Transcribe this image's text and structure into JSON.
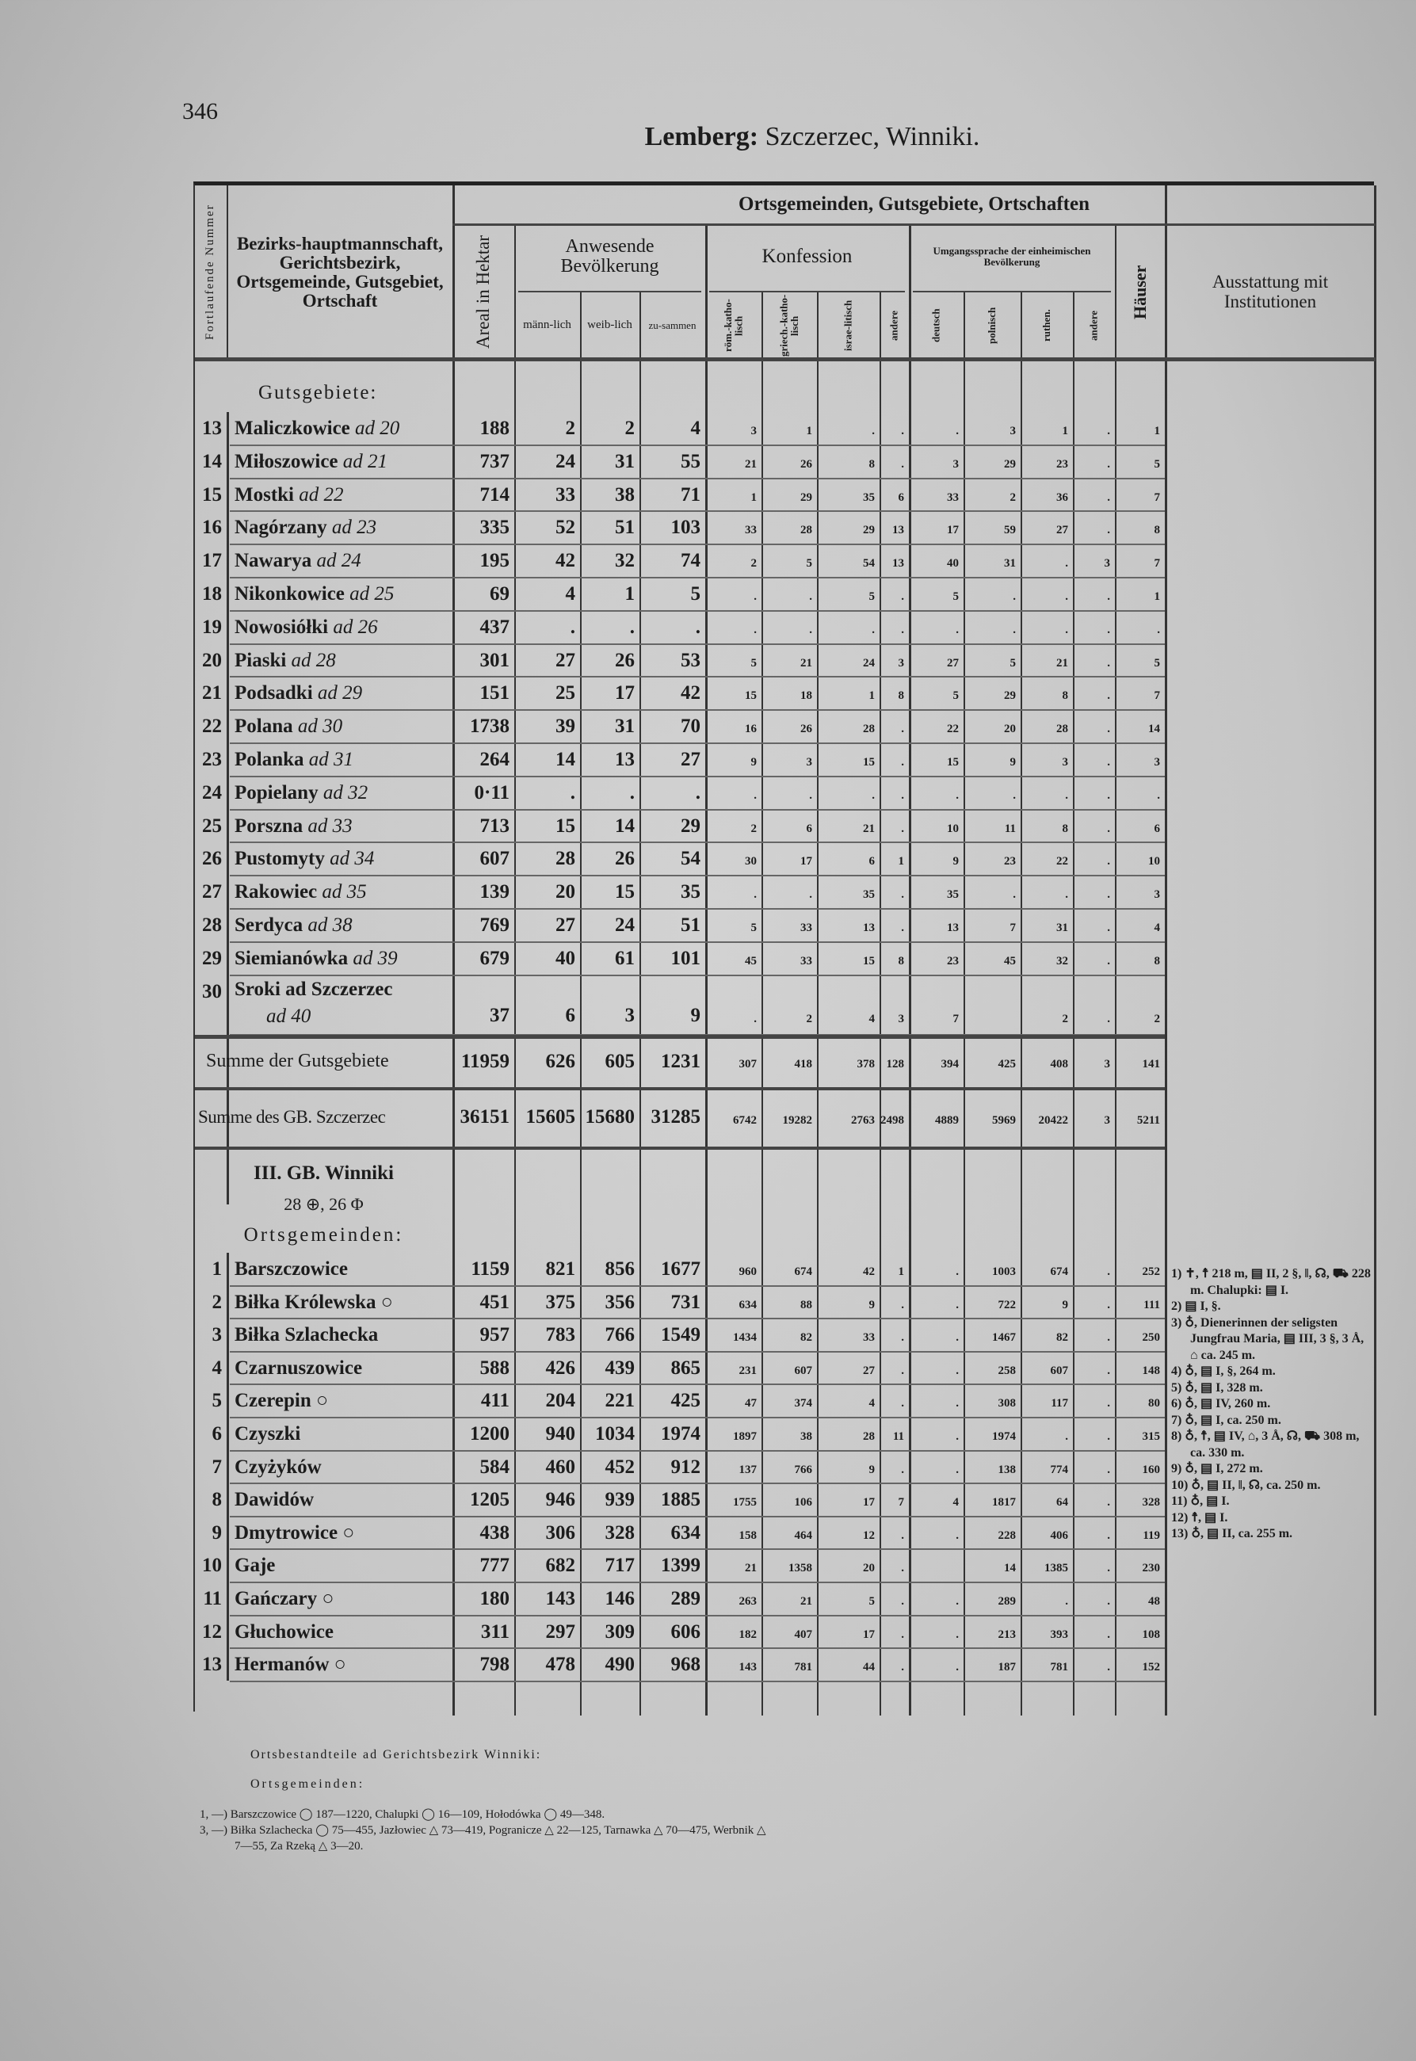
{
  "page_number": "346",
  "title": {
    "bold": "Lemberg:",
    "rest": " Szczerzec, Winniki."
  },
  "header": {
    "nr": "Fortlaufende Nummer",
    "name": "Bezirks-hauptmannschaft, Gerichtsbezirk, Ortsgemeinde, Gutsgebiet, Ortschaft",
    "group": "Ortsgemeinden, Gutsgebiete, Ortschaften",
    "areal": "Areal in Hektar",
    "bev": "Anwesende Bevölkerung",
    "bev_cols": [
      "männ-lich",
      "weib-lich",
      "zu-sammen"
    ],
    "konf": "Konfession",
    "konf_cols": [
      "röm.-katho-lisch",
      "griech.-katho-lisch",
      "israe-litisch",
      "andere"
    ],
    "spr": "Umgangssprache der einheimischen Bevölkerung",
    "spr_cols": [
      "deutsch",
      "polnisch",
      "ruthen.",
      "andere"
    ],
    "haeuser": "Häuser",
    "ausst": "Ausstattung mit Institutionen"
  },
  "gutsgebiete": {
    "label": "Gutsgebiete:",
    "rows": [
      {
        "nr": "13",
        "name": "Maliczkowice",
        "ad": "ad 20",
        "v": [
          "188",
          "2",
          "2",
          "4",
          "3",
          "1",
          ".",
          ".",
          ".",
          "3",
          "1",
          ".",
          "1"
        ]
      },
      {
        "nr": "14",
        "name": "Miłoszowice",
        "ad": "ad 21",
        "v": [
          "737",
          "24",
          "31",
          "55",
          "21",
          "26",
          "8",
          ".",
          "3",
          "29",
          "23",
          ".",
          "5"
        ]
      },
      {
        "nr": "15",
        "name": "Mostki",
        "ad": "ad 22",
        "v": [
          "714",
          "33",
          "38",
          "71",
          "1",
          "29",
          "35",
          "6",
          "33",
          "2",
          "36",
          ".",
          "7"
        ]
      },
      {
        "nr": "16",
        "name": "Nagórzany",
        "ad": "ad 23",
        "v": [
          "335",
          "52",
          "51",
          "103",
          "33",
          "28",
          "29",
          "13",
          "17",
          "59",
          "27",
          ".",
          "8"
        ]
      },
      {
        "nr": "17",
        "name": "Nawarya",
        "ad": "ad 24",
        "v": [
          "195",
          "42",
          "32",
          "74",
          "2",
          "5",
          "54",
          "13",
          "40",
          "31",
          ".",
          "3",
          "7"
        ]
      },
      {
        "nr": "18",
        "name": "Nikonkowice",
        "ad": "ad 25",
        "v": [
          "69",
          "4",
          "1",
          "5",
          ".",
          ".",
          "5",
          ".",
          "5",
          ".",
          ".",
          ".",
          "1"
        ]
      },
      {
        "nr": "19",
        "name": "Nowosiółki",
        "ad": "ad 26",
        "v": [
          "437",
          ".",
          ".",
          ".",
          ".",
          ".",
          ".",
          ".",
          ".",
          ".",
          ".",
          ".",
          "."
        ]
      },
      {
        "nr": "20",
        "name": "Piaski",
        "ad": "ad 28",
        "v": [
          "301",
          "27",
          "26",
          "53",
          "5",
          "21",
          "24",
          "3",
          "27",
          "5",
          "21",
          ".",
          "5"
        ]
      },
      {
        "nr": "21",
        "name": "Podsadki",
        "ad": "ad 29",
        "v": [
          "151",
          "25",
          "17",
          "42",
          "15",
          "18",
          "1",
          "8",
          "5",
          "29",
          "8",
          ".",
          "7"
        ]
      },
      {
        "nr": "22",
        "name": "Polana",
        "ad": "ad 30",
        "v": [
          "1738",
          "39",
          "31",
          "70",
          "16",
          "26",
          "28",
          ".",
          "22",
          "20",
          "28",
          ".",
          "14"
        ]
      },
      {
        "nr": "23",
        "name": "Polanka",
        "ad": "ad 31",
        "v": [
          "264",
          "14",
          "13",
          "27",
          "9",
          "3",
          "15",
          ".",
          "15",
          "9",
          "3",
          ".",
          "3"
        ]
      },
      {
        "nr": "24",
        "name": "Popielany",
        "ad": "ad 32",
        "v": [
          "0·11",
          ".",
          ".",
          ".",
          ".",
          ".",
          ".",
          ".",
          ".",
          ".",
          ".",
          ".",
          "."
        ]
      },
      {
        "nr": "25",
        "name": "Porszna",
        "ad": "ad 33",
        "v": [
          "713",
          "15",
          "14",
          "29",
          "2",
          "6",
          "21",
          ".",
          "10",
          "11",
          "8",
          ".",
          "6"
        ]
      },
      {
        "nr": "26",
        "name": "Pustomyty",
        "ad": "ad 34",
        "v": [
          "607",
          "28",
          "26",
          "54",
          "30",
          "17",
          "6",
          "1",
          "9",
          "23",
          "22",
          ".",
          "10"
        ]
      },
      {
        "nr": "27",
        "name": "Rakowiec",
        "ad": "ad 35",
        "v": [
          "139",
          "20",
          "15",
          "35",
          ".",
          ".",
          "35",
          ".",
          "35",
          ".",
          ".",
          ".",
          "3"
        ]
      },
      {
        "nr": "28",
        "name": "Serdyca",
        "ad": "ad 38",
        "v": [
          "769",
          "27",
          "24",
          "51",
          "5",
          "33",
          "13",
          ".",
          "13",
          "7",
          "31",
          ".",
          "4"
        ]
      },
      {
        "nr": "29",
        "name": "Siemianówka",
        "ad": "ad 39",
        "v": [
          "679",
          "40",
          "61",
          "101",
          "45",
          "33",
          "15",
          "8",
          "23",
          "45",
          "32",
          ".",
          "8"
        ]
      },
      {
        "nr": "30",
        "name": "Sroki ad Szczerzec",
        "ad": "ad 40",
        "v": [
          "37",
          "6",
          "3",
          "9",
          ".",
          "2",
          "4",
          "3",
          "7",
          "",
          "2",
          ".",
          "2"
        ]
      }
    ],
    "sum_label": "Summe der Gutsgebiete",
    "sum": [
      "11959",
      "626",
      "605",
      "1231",
      "307",
      "418",
      "378",
      "128",
      "394",
      "425",
      "408",
      "3",
      "141"
    ]
  },
  "gb_sum": {
    "label": "Summe des GB. Szczerzec",
    "v": [
      "36151",
      "15605",
      "15680",
      "31285",
      "6742",
      "19282",
      "2763",
      "2498",
      "4889",
      "5969",
      "20422",
      "3",
      "5211"
    ]
  },
  "winniki": {
    "heading": "III. GB. Winniki",
    "sub": "28 ⊕, 26 Φ",
    "label": "Ortsgemeinden:",
    "rows": [
      {
        "nr": "1",
        "name": "Barszczowice",
        "v": [
          "1159",
          "821",
          "856",
          "1677",
          "960",
          "674",
          "42",
          "1",
          ".",
          "1003",
          "674",
          ".",
          "252"
        ]
      },
      {
        "nr": "2",
        "name": "Biłka Królewska ○",
        "v": [
          "451",
          "375",
          "356",
          "731",
          "634",
          "88",
          "9",
          ".",
          ".",
          "722",
          "9",
          ".",
          "111"
        ]
      },
      {
        "nr": "3",
        "name": "Biłka Szlachecka",
        "v": [
          "957",
          "783",
          "766",
          "1549",
          "1434",
          "82",
          "33",
          ".",
          ".",
          "1467",
          "82",
          ".",
          "250"
        ]
      },
      {
        "nr": "4",
        "name": "Czarnuszowice",
        "v": [
          "588",
          "426",
          "439",
          "865",
          "231",
          "607",
          "27",
          ".",
          ".",
          "258",
          "607",
          ".",
          "148"
        ]
      },
      {
        "nr": "5",
        "name": "Czerepin ○",
        "v": [
          "411",
          "204",
          "221",
          "425",
          "47",
          "374",
          "4",
          ".",
          ".",
          "308",
          "117",
          ".",
          "80"
        ]
      },
      {
        "nr": "6",
        "name": "Czyszki",
        "v": [
          "1200",
          "940",
          "1034",
          "1974",
          "1897",
          "38",
          "28",
          "11",
          ".",
          "1974",
          ".",
          ".",
          "315"
        ]
      },
      {
        "nr": "7",
        "name": "Czyżyków",
        "v": [
          "584",
          "460",
          "452",
          "912",
          "137",
          "766",
          "9",
          ".",
          ".",
          "138",
          "774",
          ".",
          "160"
        ]
      },
      {
        "nr": "8",
        "name": "Dawidów",
        "v": [
          "1205",
          "946",
          "939",
          "1885",
          "1755",
          "106",
          "17",
          "7",
          "4",
          "1817",
          "64",
          ".",
          "328"
        ]
      },
      {
        "nr": "9",
        "name": "Dmytrowice ○",
        "v": [
          "438",
          "306",
          "328",
          "634",
          "158",
          "464",
          "12",
          ".",
          ".",
          "228",
          "406",
          ".",
          "119"
        ]
      },
      {
        "nr": "10",
        "name": "Gaje",
        "v": [
          "777",
          "682",
          "717",
          "1399",
          "21",
          "1358",
          "20",
          ".",
          "",
          "14",
          "1385",
          ".",
          "230"
        ]
      },
      {
        "nr": "11",
        "name": "Gańczary ○",
        "v": [
          "180",
          "143",
          "146",
          "289",
          "263",
          "21",
          "5",
          ".",
          ".",
          "289",
          ".",
          ".",
          "48"
        ]
      },
      {
        "nr": "12",
        "name": "Głuchowice",
        "v": [
          "311",
          "297",
          "309",
          "606",
          "182",
          "407",
          "17",
          ".",
          ".",
          "213",
          "393",
          ".",
          "108"
        ]
      },
      {
        "nr": "13",
        "name": "Hermanów ○",
        "v": [
          "798",
          "478",
          "490",
          "968",
          "143",
          "781",
          "44",
          ".",
          ".",
          "187",
          "781",
          ".",
          "152"
        ]
      }
    ]
  },
  "notes": [
    "1) ✝, ☨ 218 m, ▤ II, 2 §, ‖, ☊, ⛟ 228 m. Chalupki: ▤ I.",
    "2) ▤ I, §.",
    "3) ♁, Dienerinnen der seligsten Jungfrau Maria, ▤ III, 3 §, 3 Å, ⌂ ca. 245 m.",
    "4) ♁, ▤ I, §, 264 m.",
    "5) ♁, ▤ I, 328 m.",
    "6) ♁, ▤ IV, 260 m.",
    "7) ♁, ▤ I, ca. 250 m.",
    "8) ♁, ☨, ▤ IV, ⌂, 3 Å, ☊, ⛟ 308 m, ca. 330 m.",
    "9) ♁, ▤ I, 272 m.",
    "10) ♁, ▤ II, ‖, ☊, ca. 250 m.",
    "11) ♁, ▤ I.",
    "12) ☨, ▤ I.",
    "13) ♁, ▤ II, ca. 255 m."
  ],
  "footer": {
    "heading": "Ortsbestandteile ad Gerichtsbezirk Winniki:",
    "sub": "Ortsgemeinden:",
    "lines": [
      "1, —) Barszczowice ◯ 187—1220, Chalupki ◯ 16—109, Hołodówka ◯ 49—348.",
      "3, —) Biłka Szlachecka ◯ 75—455, Jazłowiec △ 73—419, Pogranicze △ 22—125, Tarnawka △ 70—475, Werbnik △",
      "7—55, Za Rzeką △ 3—20."
    ]
  }
}
